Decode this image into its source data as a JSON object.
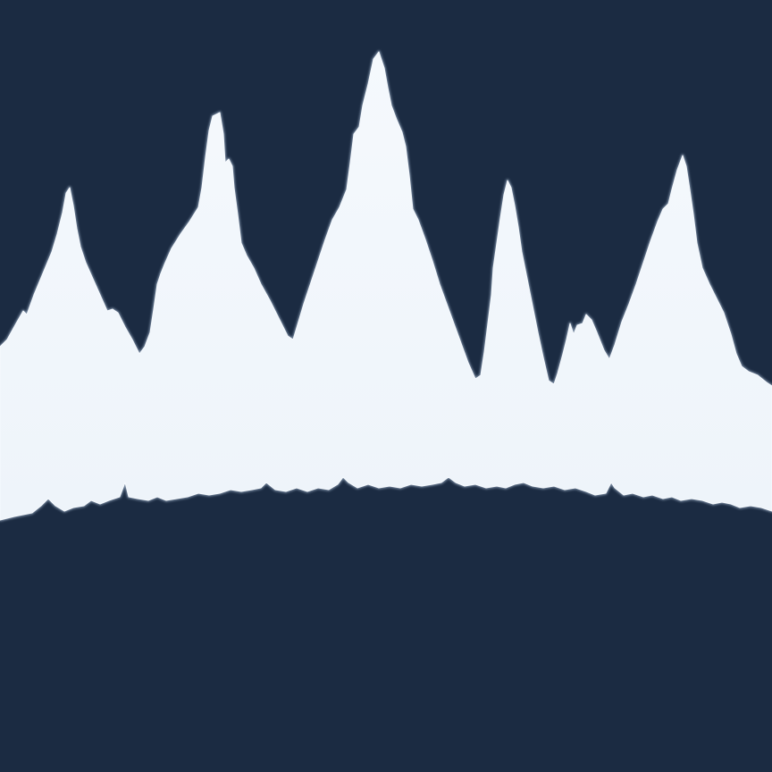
{
  "colors": {
    "background": "#1b2b42",
    "silhouette": "#f5f9fd",
    "silhouette_shade": "#eef4fa",
    "edge": "#7f91a8"
  },
  "art": {
    "icon": "mountain-range-silhouette-icon"
  }
}
